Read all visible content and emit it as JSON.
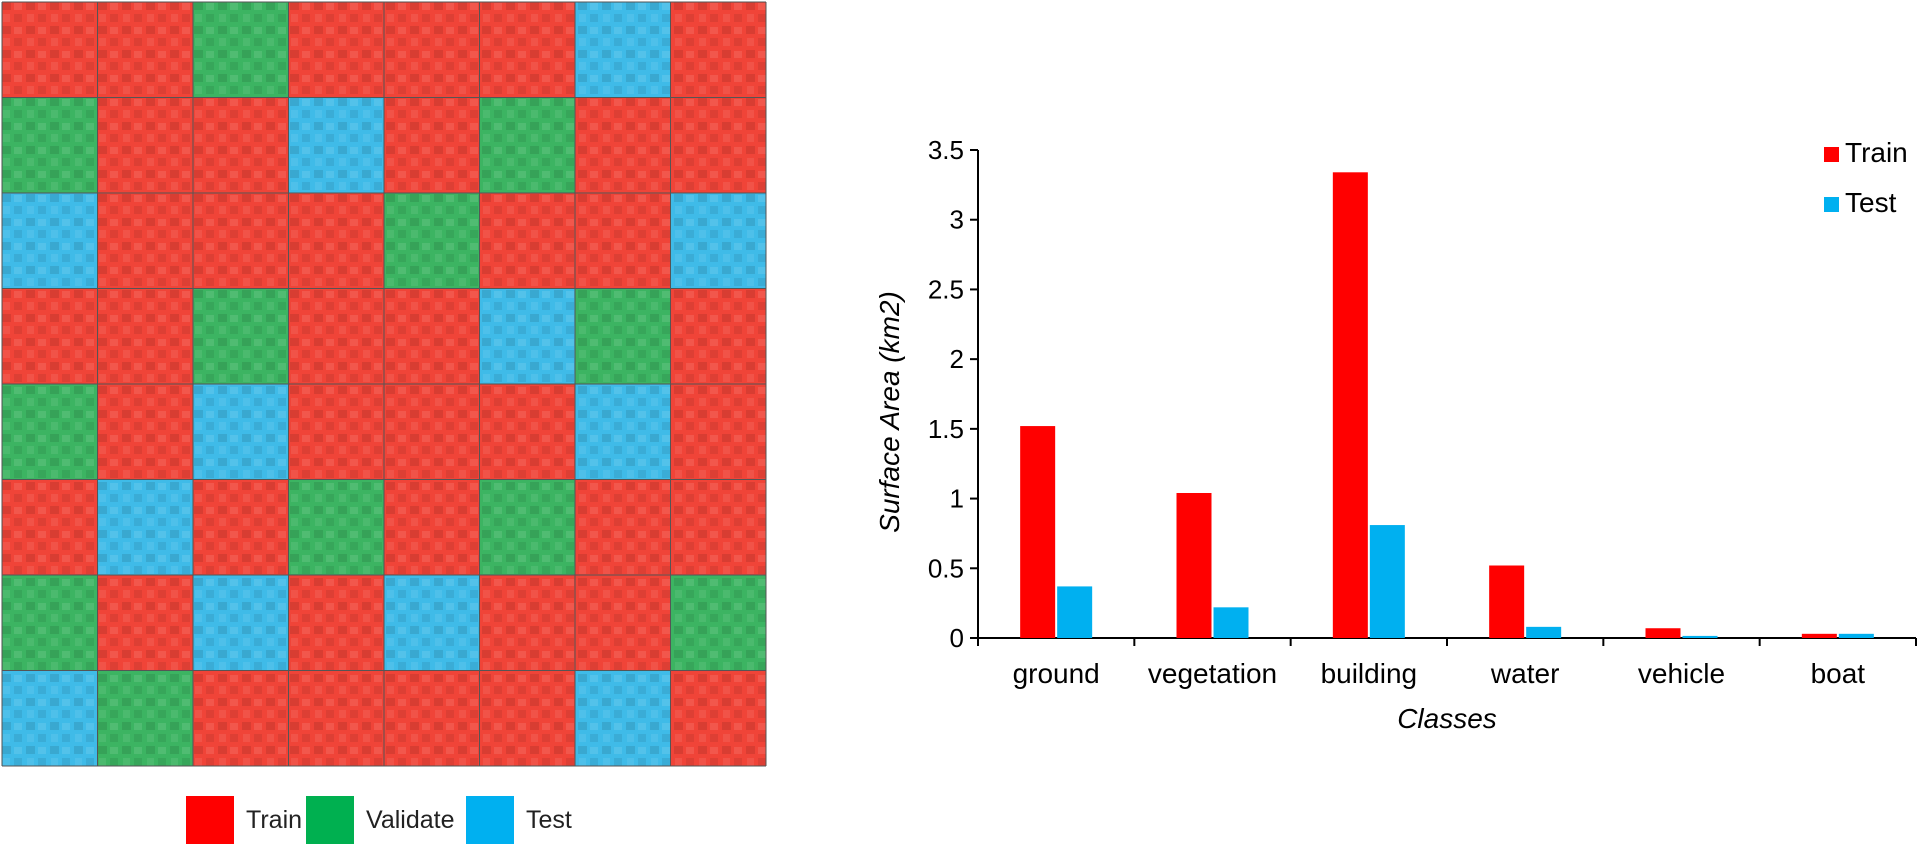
{
  "map": {
    "rows": 8,
    "cols": 8,
    "grid": [
      [
        "train",
        "train",
        "validate",
        "train",
        "train",
        "train",
        "test",
        "train"
      ],
      [
        "validate",
        "train",
        "train",
        "test",
        "train",
        "validate",
        "train",
        "train"
      ],
      [
        "test",
        "train",
        "train",
        "train",
        "validate",
        "train",
        "train",
        "test"
      ],
      [
        "train",
        "train",
        "validate",
        "train",
        "train",
        "test",
        "validate",
        "train"
      ],
      [
        "validate",
        "train",
        "test",
        "train",
        "train",
        "train",
        "test",
        "train"
      ],
      [
        "train",
        "test",
        "train",
        "validate",
        "train",
        "validate",
        "train",
        "train"
      ],
      [
        "validate",
        "train",
        "test",
        "train",
        "test",
        "train",
        "train",
        "validate"
      ],
      [
        "test",
        "validate",
        "train",
        "train",
        "train",
        "train",
        "test",
        "train"
      ]
    ],
    "colors": {
      "train": "#f04438",
      "validate": "#3cb462",
      "test": "#3fbbe8"
    },
    "legend": [
      {
        "key": "train",
        "label": "Train",
        "color": "#ff0000"
      },
      {
        "key": "validate",
        "label": "Validate",
        "color": "#00b050"
      },
      {
        "key": "test",
        "label": "Test",
        "color": "#00b0f0"
      }
    ]
  },
  "chart_data": {
    "type": "bar",
    "categories": [
      "ground",
      "vegetation",
      "building",
      "water",
      "vehicle",
      "boat"
    ],
    "series": [
      {
        "name": "Train",
        "color": "#ff0000",
        "values": [
          1.52,
          1.04,
          3.34,
          0.52,
          0.07,
          0.03
        ]
      },
      {
        "name": "Test",
        "color": "#00b0f0",
        "values": [
          0.37,
          0.22,
          0.81,
          0.08,
          0.015,
          0.03
        ]
      }
    ],
    "xlabel": "Classes",
    "ylabel": "Surface Area (km2)",
    "ylim": [
      0,
      3.5
    ],
    "yticks": [
      "0",
      "0.5",
      "1",
      "1.5",
      "2",
      "2.5",
      "3",
      "3.5"
    ],
    "grid": false,
    "legend_position": "top-right"
  }
}
